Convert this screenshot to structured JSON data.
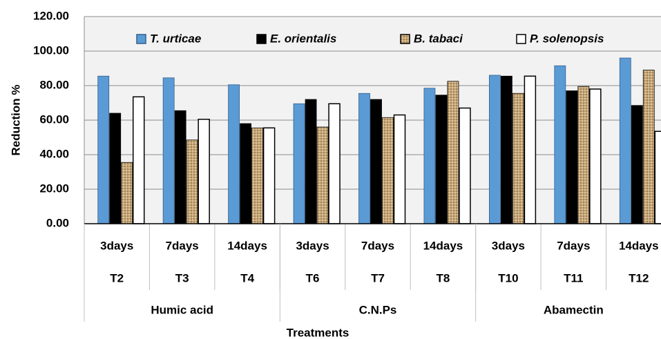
{
  "chart_data": {
    "type": "bar",
    "x_label": "Treatments",
    "y_label": "Reduction %",
    "categories": [
      "3days",
      "7days",
      "14days",
      "3days",
      "7days",
      "14days",
      "3days",
      "7days",
      "14days"
    ],
    "codes": [
      "T2",
      "T3",
      "T4",
      "T6",
      "T7",
      "T8",
      "T10",
      "T11",
      "T12"
    ],
    "groups": [
      "Humic acid",
      "C.N.Ps",
      "Abamectin"
    ],
    "series": [
      {
        "name": "T. urticae",
        "color": "#5b9bd5",
        "values": [
          85.5,
          84.5,
          80.5,
          69.5,
          75.5,
          78.5,
          86,
          91.5,
          96
        ]
      },
      {
        "name": "E. orientalis",
        "color": "#000000",
        "values": [
          64,
          65.5,
          58,
          72,
          72,
          74.5,
          85.5,
          77,
          68.5
        ]
      },
      {
        "name": "B. tabaci",
        "color": "#c9a878",
        "values": [
          35.5,
          48.5,
          55.5,
          56,
          61.5,
          82.5,
          75.5,
          79.5,
          89
        ]
      },
      {
        "name": "P. solenopsis",
        "color": "#ffffff",
        "values": [
          73.5,
          60.5,
          55.5,
          69.5,
          63,
          67,
          85.5,
          78,
          53.5
        ]
      }
    ],
    "ylim": [
      0,
      120
    ],
    "yticks": [
      {
        "value": 0,
        "label": "0.00"
      },
      {
        "value": 20,
        "label": "20.00"
      },
      {
        "value": 40,
        "label": "40.00"
      },
      {
        "value": 60,
        "label": "60.00"
      },
      {
        "value": 80,
        "label": "80.00"
      },
      {
        "value": 100,
        "label": "100.00"
      },
      {
        "value": 120,
        "label": "120.00"
      }
    ],
    "grid": true,
    "legend": "top"
  }
}
